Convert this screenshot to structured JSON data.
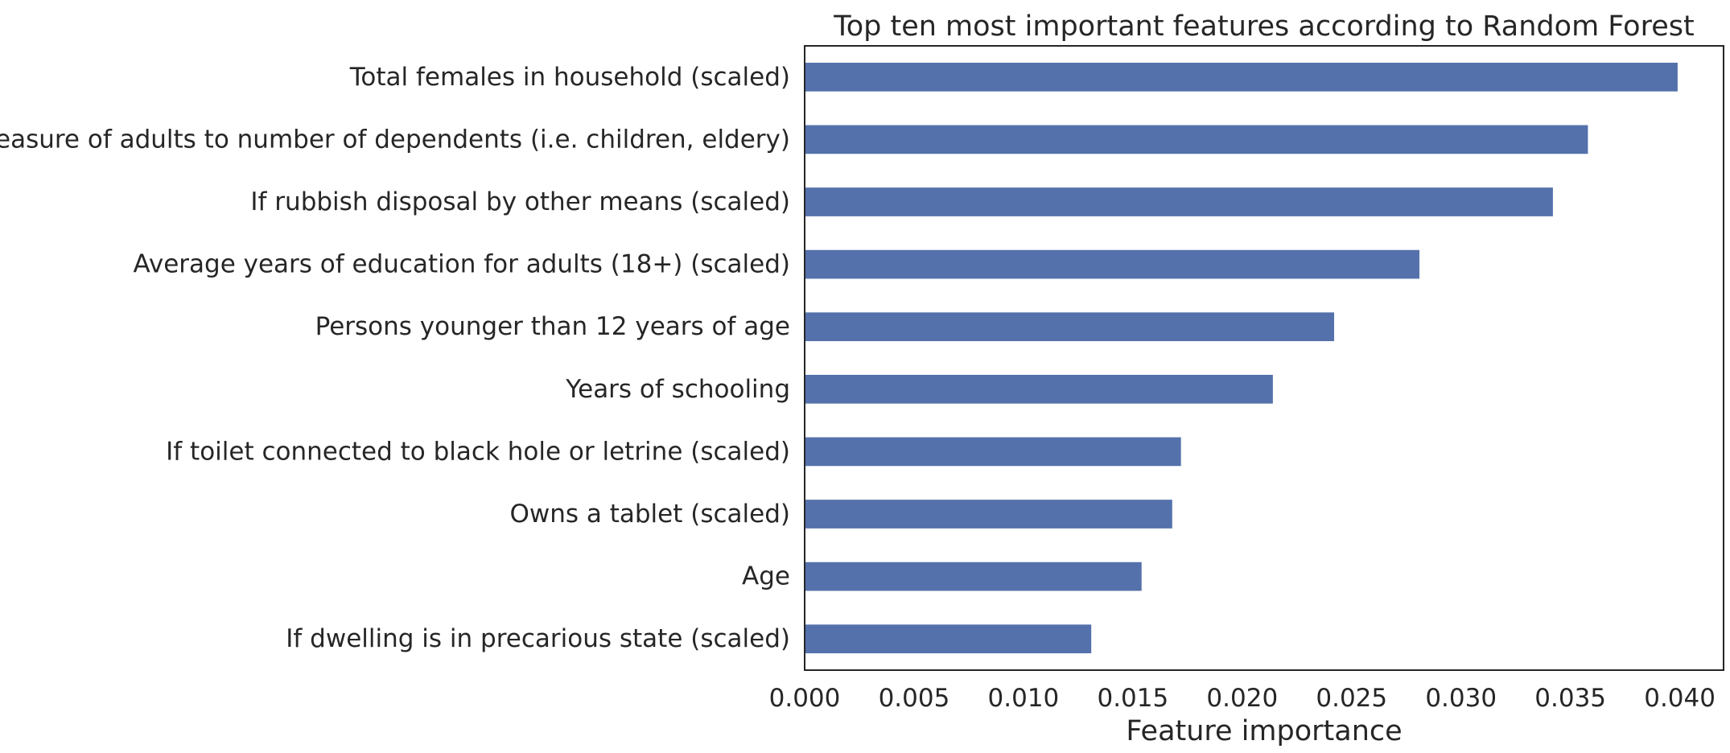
{
  "chart_data": {
    "type": "bar",
    "orientation": "horizontal",
    "title": "Top ten most important features according to Random Forest",
    "xlabel": "Feature importance",
    "ylabel": "",
    "categories": [
      "Total females in household (scaled)",
      "Measure of adults to number of dependents (i.e. children, eldery)",
      "If rubbish disposal by other means (scaled)",
      "Average years of education for adults (18+) (scaled)",
      "Persons younger than 12 years of age",
      "Years of schooling",
      "If toilet connected to black hole or letrine (scaled)",
      "Owns a tablet (scaled)",
      "Age",
      "If dwelling is in precarious state (scaled)"
    ],
    "values": [
      0.0399,
      0.0358,
      0.0342,
      0.0281,
      0.0242,
      0.0214,
      0.0172,
      0.0168,
      0.0154,
      0.0131
    ],
    "xlim": [
      0.0,
      0.042
    ],
    "xticks": [
      "0.000",
      "0.005",
      "0.010",
      "0.015",
      "0.020",
      "0.025",
      "0.030",
      "0.035",
      "0.040"
    ],
    "xtick_values": [
      0.0,
      0.005,
      0.01,
      0.015,
      0.02,
      0.025,
      0.03,
      0.035,
      0.04
    ],
    "grid": false,
    "bar_color": "#5471ab"
  }
}
